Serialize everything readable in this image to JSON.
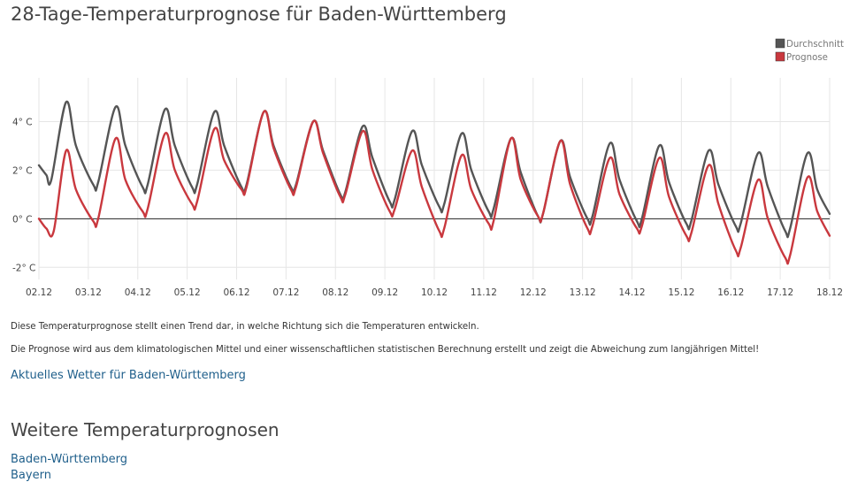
{
  "page": {
    "title": "28-Tage-Temperaturprognose für Baden-Württemberg",
    "description_1": "Diese Temperaturprognose stellt einen Trend dar, in welche Richtung sich die Temperaturen entwickeln.",
    "description_2": "Die Prognose wird aus dem klimatologischen Mittel und einer wissenschaftlichen statistischen Berechnung erstellt und zeigt die Abweichung zum langjährigen Mittel!",
    "current_weather_link": "Aktuelles Wetter für Baden-Württemberg",
    "more_forecasts_title": "Weitere Temperaturprognosen",
    "more_forecasts_links": [
      "Baden-Württemberg",
      "Bayern"
    ]
  },
  "chart_data": {
    "type": "line",
    "title": "",
    "xlabel": "",
    "ylabel": "",
    "x_ticks": [
      "02.12",
      "03.12",
      "04.12",
      "05.12",
      "06.12",
      "07.12",
      "08.12",
      "09.12",
      "10.12",
      "11.12",
      "12.12",
      "13.12",
      "14.12",
      "15.12",
      "16.12",
      "17.12",
      "18.12"
    ],
    "y_ticks": [
      4,
      2,
      0,
      -2
    ],
    "y_tick_labels": [
      "4° C",
      "2° C",
      "0° C",
      "-2° C"
    ],
    "ylim": [
      -2.5,
      5.8
    ],
    "x_range_days": [
      0,
      16
    ],
    "grid": true,
    "legend_position": "top-right",
    "series": [
      {
        "name": "Durchschnitt",
        "color": "#555555",
        "points": [
          [
            0.0,
            2.2
          ],
          [
            0.15,
            1.8
          ],
          [
            0.25,
            1.6
          ],
          [
            0.55,
            4.8
          ],
          [
            0.75,
            3.0
          ],
          [
            1.1,
            1.4
          ],
          [
            1.2,
            1.5
          ],
          [
            1.55,
            4.6
          ],
          [
            1.75,
            3.0
          ],
          [
            2.1,
            1.3
          ],
          [
            2.2,
            1.4
          ],
          [
            2.55,
            4.5
          ],
          [
            2.75,
            3.0
          ],
          [
            3.1,
            1.3
          ],
          [
            3.2,
            1.4
          ],
          [
            3.55,
            4.4
          ],
          [
            3.75,
            3.0
          ],
          [
            4.1,
            1.3
          ],
          [
            4.2,
            1.4
          ],
          [
            4.55,
            4.4
          ],
          [
            4.75,
            3.0
          ],
          [
            5.1,
            1.3
          ],
          [
            5.2,
            1.4
          ],
          [
            5.55,
            4.0
          ],
          [
            5.75,
            2.8
          ],
          [
            6.1,
            1.0
          ],
          [
            6.2,
            1.1
          ],
          [
            6.55,
            3.8
          ],
          [
            6.75,
            2.5
          ],
          [
            7.1,
            0.7
          ],
          [
            7.2,
            0.8
          ],
          [
            7.55,
            3.6
          ],
          [
            7.75,
            2.2
          ],
          [
            8.1,
            0.5
          ],
          [
            8.2,
            0.6
          ],
          [
            8.55,
            3.5
          ],
          [
            8.75,
            2.0
          ],
          [
            9.1,
            0.3
          ],
          [
            9.2,
            0.4
          ],
          [
            9.55,
            3.3
          ],
          [
            9.75,
            1.9
          ],
          [
            10.1,
            0.1
          ],
          [
            10.2,
            0.2
          ],
          [
            10.55,
            3.2
          ],
          [
            10.75,
            1.7
          ],
          [
            11.1,
            0.0
          ],
          [
            11.2,
            0.1
          ],
          [
            11.55,
            3.1
          ],
          [
            11.75,
            1.6
          ],
          [
            12.1,
            -0.1
          ],
          [
            12.2,
            0.0
          ],
          [
            12.55,
            3.0
          ],
          [
            12.75,
            1.5
          ],
          [
            13.1,
            -0.2
          ],
          [
            13.2,
            -0.1
          ],
          [
            13.55,
            2.8
          ],
          [
            13.75,
            1.4
          ],
          [
            14.1,
            -0.3
          ],
          [
            14.2,
            -0.2
          ],
          [
            14.55,
            2.7
          ],
          [
            14.75,
            1.3
          ],
          [
            15.1,
            -0.5
          ],
          [
            15.2,
            -0.4
          ],
          [
            15.55,
            2.7
          ],
          [
            15.75,
            1.2
          ],
          [
            16.0,
            0.2
          ]
        ]
      },
      {
        "name": "Prognose",
        "color": "#c9383e",
        "points": [
          [
            0.0,
            0.0
          ],
          [
            0.15,
            -0.4
          ],
          [
            0.3,
            -0.5
          ],
          [
            0.55,
            2.8
          ],
          [
            0.75,
            1.2
          ],
          [
            1.1,
            -0.1
          ],
          [
            1.2,
            0.0
          ],
          [
            1.55,
            3.3
          ],
          [
            1.75,
            1.6
          ],
          [
            2.1,
            0.3
          ],
          [
            2.2,
            0.4
          ],
          [
            2.55,
            3.5
          ],
          [
            2.75,
            2.0
          ],
          [
            3.1,
            0.6
          ],
          [
            3.2,
            0.7
          ],
          [
            3.55,
            3.7
          ],
          [
            3.75,
            2.4
          ],
          [
            4.1,
            1.2
          ],
          [
            4.2,
            1.3
          ],
          [
            4.55,
            4.4
          ],
          [
            4.75,
            2.9
          ],
          [
            5.1,
            1.2
          ],
          [
            5.2,
            1.3
          ],
          [
            5.55,
            4.0
          ],
          [
            5.75,
            2.7
          ],
          [
            6.1,
            0.9
          ],
          [
            6.2,
            1.0
          ],
          [
            6.55,
            3.6
          ],
          [
            6.75,
            2.0
          ],
          [
            7.1,
            0.3
          ],
          [
            7.2,
            0.4
          ],
          [
            7.55,
            2.8
          ],
          [
            7.75,
            1.3
          ],
          [
            8.1,
            -0.5
          ],
          [
            8.2,
            -0.4
          ],
          [
            8.55,
            2.6
          ],
          [
            8.75,
            1.2
          ],
          [
            9.1,
            -0.2
          ],
          [
            9.2,
            -0.1
          ],
          [
            9.55,
            3.3
          ],
          [
            9.75,
            1.6
          ],
          [
            10.1,
            0.1
          ],
          [
            10.2,
            0.2
          ],
          [
            10.55,
            3.2
          ],
          [
            10.75,
            1.4
          ],
          [
            11.1,
            -0.4
          ],
          [
            11.2,
            -0.3
          ],
          [
            11.55,
            2.5
          ],
          [
            11.75,
            1.0
          ],
          [
            12.1,
            -0.4
          ],
          [
            12.2,
            -0.3
          ],
          [
            12.55,
            2.5
          ],
          [
            12.75,
            0.9
          ],
          [
            13.1,
            -0.7
          ],
          [
            13.2,
            -0.6
          ],
          [
            13.55,
            2.2
          ],
          [
            13.75,
            0.6
          ],
          [
            14.1,
            -1.3
          ],
          [
            14.2,
            -1.2
          ],
          [
            14.55,
            1.6
          ],
          [
            14.75,
            0.0
          ],
          [
            15.1,
            -1.6
          ],
          [
            15.2,
            -1.5
          ],
          [
            15.55,
            1.7
          ],
          [
            15.75,
            0.3
          ],
          [
            16.0,
            -0.7
          ]
        ]
      }
    ]
  }
}
